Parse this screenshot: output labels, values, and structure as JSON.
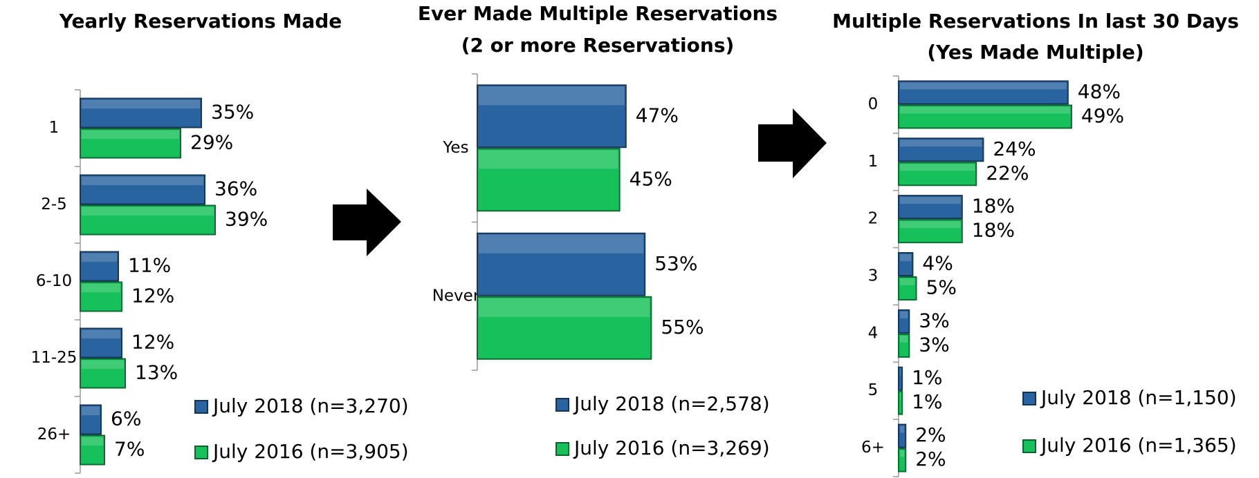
{
  "chart_data": [
    {
      "type": "bar",
      "orientation": "horizontal",
      "title": [
        "Yearly Reservations Made"
      ],
      "categories": [
        "1",
        "2-5",
        "6-10",
        "11-25",
        "26+"
      ],
      "series": [
        {
          "name": "July 2018 (n=3,270)",
          "color": "#2a64a0",
          "values": [
            35,
            36,
            11,
            12,
            6
          ],
          "value_labels": [
            "35%",
            "36%",
            "11%",
            "12%",
            "6%"
          ]
        },
        {
          "name": "July 2016 (n=3,905)",
          "color": "#16c05a",
          "values": [
            29,
            39,
            12,
            13,
            7
          ],
          "value_labels": [
            "29%",
            "39%",
            "12%",
            "13%",
            "7%"
          ]
        }
      ]
    },
    {
      "type": "bar",
      "orientation": "horizontal",
      "title": [
        "Ever Made Multiple Reservations",
        "(2 or more Reservations)"
      ],
      "categories": [
        "Yes",
        "Never"
      ],
      "series": [
        {
          "name": "July 2018 (n=2,578)",
          "color": "#2a64a0",
          "values": [
            47,
            53
          ],
          "value_labels": [
            "47%",
            "53%"
          ]
        },
        {
          "name": "July 2016 (n=3,269)",
          "color": "#16c05a",
          "values": [
            45,
            55
          ],
          "value_labels": [
            "45%",
            "55%"
          ]
        }
      ]
    },
    {
      "type": "bar",
      "orientation": "horizontal",
      "title": [
        "Multiple Reservations In last 30 Days",
        "(Yes Made Multiple)"
      ],
      "categories": [
        "0",
        "1",
        "2",
        "3",
        "4",
        "5",
        "6+"
      ],
      "series": [
        {
          "name": "July 2018 (n=1,150)",
          "color": "#2a64a0",
          "values": [
            48,
            24,
            18,
            4,
            3,
            1,
            2
          ],
          "value_labels": [
            "48%",
            "24%",
            "18%",
            "4%",
            "3%",
            "1%",
            "2%"
          ]
        },
        {
          "name": "July 2016 (n=1,365)",
          "color": "#16c05a",
          "values": [
            49,
            22,
            18,
            5,
            3,
            1,
            2
          ],
          "value_labels": [
            "49%",
            "22%",
            "18%",
            "5%",
            "3%",
            "1%",
            "2%"
          ]
        }
      ]
    }
  ]
}
